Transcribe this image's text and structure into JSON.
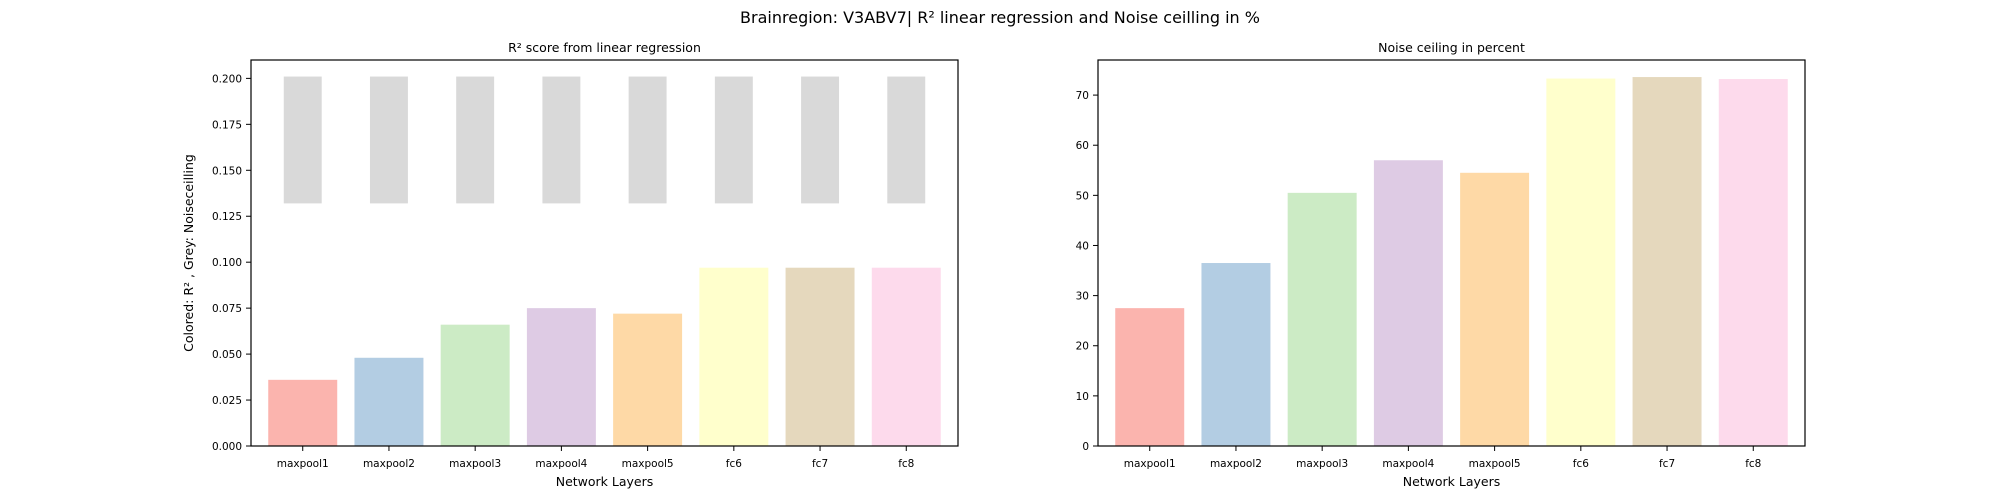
{
  "figure": {
    "suptitle": "Brainregion: V3ABV7| R² linear regression and Noise ceilling in %"
  },
  "chart_data": [
    {
      "type": "bar",
      "title": "R² score from linear regression",
      "xlabel": "Network Layers",
      "ylabel": "Colored: R² , Grey: Noiseceilling",
      "categories": [
        "maxpool1",
        "maxpool2",
        "maxpool3",
        "maxpool4",
        "maxpool5",
        "fc6",
        "fc7",
        "fc8"
      ],
      "series": [
        {
          "role": "r2",
          "values": [
            0.036,
            0.048,
            0.066,
            0.075,
            0.072,
            0.097,
            0.097,
            0.097
          ],
          "colors": [
            "#fbb4ae",
            "#b3cde3",
            "#ccebc5",
            "#decbe4",
            "#fed9a6",
            "#ffffcc",
            "#e5d8bd",
            "#fddaec"
          ]
        },
        {
          "role": "noise_ceiling",
          "base": 0.132,
          "values": [
            0.201,
            0.201,
            0.201,
            0.201,
            0.201,
            0.201,
            0.201,
            0.201
          ],
          "color": "#d9d9d9"
        }
      ],
      "yticks": [
        "0.000",
        "0.025",
        "0.050",
        "0.075",
        "0.100",
        "0.125",
        "0.150",
        "0.175",
        "0.200"
      ],
      "ylim": [
        0,
        0.21
      ],
      "grid": false
    },
    {
      "type": "bar",
      "title": "Noise ceiling in percent",
      "xlabel": "Network Layers",
      "ylabel": "",
      "categories": [
        "maxpool1",
        "maxpool2",
        "maxpool3",
        "maxpool4",
        "maxpool5",
        "fc6",
        "fc7",
        "fc8"
      ],
      "series": [
        {
          "values": [
            27.5,
            36.5,
            50.5,
            57.0,
            54.5,
            73.3,
            73.6,
            73.2
          ],
          "colors": [
            "#fbb4ae",
            "#b3cde3",
            "#ccebc5",
            "#decbe4",
            "#fed9a6",
            "#ffffcc",
            "#e5d8bd",
            "#fddaec"
          ]
        }
      ],
      "yticks": [
        "0",
        "10",
        "20",
        "30",
        "40",
        "50",
        "60",
        "70"
      ],
      "ylim": [
        0,
        77
      ],
      "grid": false
    }
  ]
}
